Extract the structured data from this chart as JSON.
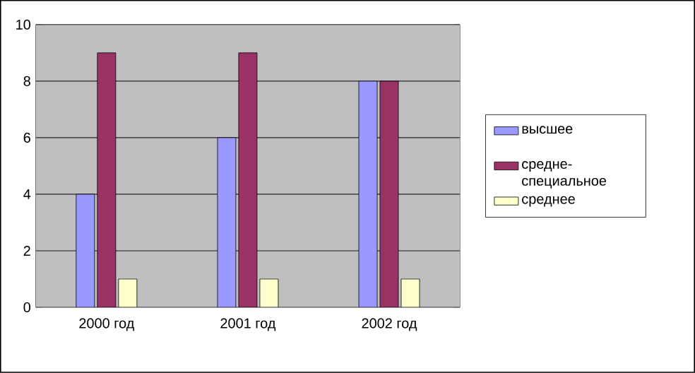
{
  "chart_data": {
    "type": "bar",
    "categories": [
      "2000 год",
      "2001 год",
      "2002 год"
    ],
    "series": [
      {
        "name": "высшее",
        "color": "#9999ff",
        "values": [
          4,
          6,
          8
        ]
      },
      {
        "name": "средне-специальное",
        "color": "#993366",
        "values": [
          9,
          9,
          8
        ]
      },
      {
        "name": "среднее",
        "color": "#ffffcc",
        "values": [
          1,
          1,
          1
        ]
      }
    ],
    "ylim": [
      0,
      10
    ],
    "yticks": [
      0,
      2,
      4,
      6,
      8,
      10
    ],
    "grid": "y",
    "legend": "right"
  }
}
